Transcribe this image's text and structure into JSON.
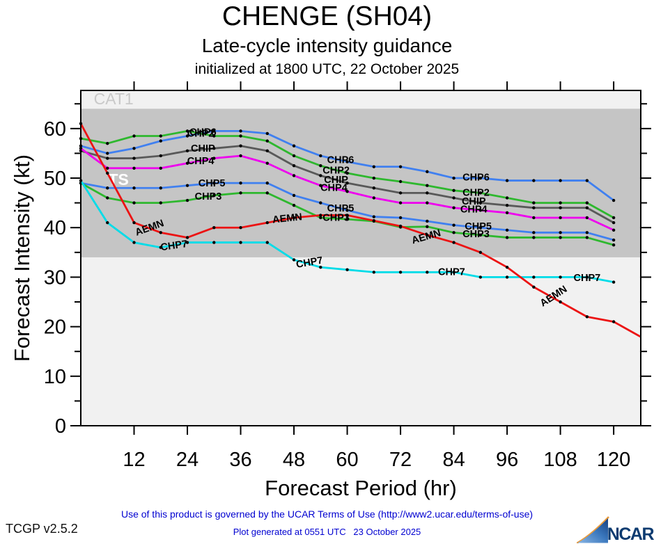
{
  "header": {
    "title": "CHENGE (SH04)",
    "subtitle": "Late-cycle intensity guidance",
    "init_line": "initialized at 1800 UTC, 22 October 2025"
  },
  "footer": {
    "terms": "Use of this product is governed by the UCAR Terms of Use (http://www2.ucar.edu/terms-of-use)",
    "generated": "Plot generated at 0551 UTC   23 October 2025",
    "version": "TCGP v2.5.2",
    "logo_text": "NCAR",
    "link_color": "#0000d0"
  },
  "chart_data": {
    "type": "line",
    "title": "CHENGE (SH04)",
    "xlabel": "Forecast Period (hr)",
    "ylabel": "Forecast Intensity (kt)",
    "xlim": [
      0,
      126.1
    ],
    "ylim": [
      0,
      67.7
    ],
    "x_ticks": [
      12,
      24,
      36,
      48,
      60,
      72,
      84,
      96,
      108,
      120
    ],
    "y_ticks_major": [
      0,
      10,
      20,
      30,
      40,
      50,
      60
    ],
    "y_ticks_minor": [
      5,
      15,
      25,
      35,
      45,
      55,
      65
    ],
    "grid": false,
    "marker_interval_hr": 6,
    "background": "#f1f1f1",
    "frame_color": "#000000",
    "bands": [
      {
        "name": "TS",
        "from": 34,
        "to": 64,
        "color": "#c5c5c5"
      }
    ],
    "zone_labels": [
      {
        "text": "CAT1",
        "t": 7.4,
        "v": 66.0,
        "color": "#c9c9c9",
        "bold": false,
        "size": 23
      },
      {
        "text": "TS",
        "t": 8.5,
        "v": 49.7,
        "color": "#ffffff",
        "bold": true,
        "size": 23
      }
    ],
    "series": [
      {
        "id": "CHP6",
        "color": "#4080f0",
        "x": [
          0,
          6,
          12,
          18,
          24,
          30,
          36,
          42,
          48,
          54,
          60,
          66,
          72,
          78,
          84,
          90,
          96,
          102,
          108,
          114,
          120
        ],
        "values": [
          56.5,
          55,
          56,
          57.5,
          58.5,
          59.5,
          59.5,
          59,
          56.5,
          54.5,
          53.3,
          52.3,
          52.3,
          51.3,
          50,
          50,
          49.5,
          49.5,
          49.5,
          49.5,
          45.5
        ],
        "labels": [
          {
            "t": 27.5,
            "v": 59.2,
            "rot": 0
          },
          {
            "t": 58.5,
            "v": 53.6,
            "rot": 0
          },
          {
            "t": 89,
            "v": 50.1,
            "rot": 0
          }
        ]
      },
      {
        "id": "CHP2",
        "color": "#2eb82e",
        "x": [
          0,
          6,
          12,
          18,
          24,
          30,
          36,
          42,
          48,
          54,
          60,
          66,
          72,
          78,
          84,
          90,
          96,
          102,
          108,
          114,
          120
        ],
        "values": [
          58,
          57,
          58.5,
          58.5,
          59.5,
          58.5,
          58.5,
          57.5,
          54.5,
          52.5,
          51,
          50,
          49.3,
          48.5,
          47.5,
          47,
          46,
          45,
          45,
          45,
          42
        ],
        "labels": [
          {
            "t": 27,
            "v": 58.9,
            "rot": 0
          },
          {
            "t": 57.5,
            "v": 51.5,
            "rot": 0
          },
          {
            "t": 89,
            "v": 47,
            "rot": 0
          }
        ]
      },
      {
        "id": "CHIP",
        "color": "#595959",
        "x": [
          0,
          6,
          12,
          18,
          24,
          30,
          36,
          42,
          48,
          54,
          60,
          66,
          72,
          78,
          84,
          90,
          96,
          102,
          108,
          114,
          120
        ],
        "values": [
          55.5,
          54,
          54,
          54.5,
          55.5,
          56,
          56.5,
          55.5,
          52.5,
          50.5,
          49,
          48,
          47,
          47,
          46,
          45,
          44.5,
          44,
          44,
          44,
          41
        ],
        "labels": [
          {
            "t": 27.5,
            "v": 55.9,
            "rot": 0
          },
          {
            "t": 57.5,
            "v": 49.6,
            "rot": 0
          },
          {
            "t": 88.5,
            "v": 45.2,
            "rot": 0
          }
        ]
      },
      {
        "id": "CHP4",
        "color": "#ee00ee",
        "x": [
          0,
          6,
          12,
          18,
          24,
          30,
          36,
          42,
          48,
          54,
          60,
          66,
          72,
          78,
          84,
          90,
          96,
          102,
          108,
          114,
          120
        ],
        "values": [
          56,
          52,
          52,
          52,
          53,
          54,
          54.5,
          53,
          50.5,
          48.5,
          47.3,
          46,
          45,
          45,
          44,
          43.5,
          43,
          42,
          42,
          42,
          39.5
        ],
        "labels": [
          {
            "t": 27,
            "v": 53.4,
            "rot": 0
          },
          {
            "t": 57,
            "v": 48,
            "rot": 0
          },
          {
            "t": 88.5,
            "v": 43.6,
            "rot": 0
          }
        ]
      },
      {
        "id": "CHP5",
        "color": "#4080f0",
        "x": [
          0,
          6,
          12,
          18,
          24,
          30,
          36,
          42,
          48,
          54,
          60,
          66,
          72,
          78,
          84,
          90,
          96,
          102,
          108,
          114,
          120
        ],
        "values": [
          49,
          48,
          48,
          48,
          48.5,
          49,
          49,
          49,
          46.5,
          45,
          43.5,
          42.2,
          42,
          41.3,
          40.5,
          40,
          39.5,
          39,
          39,
          39,
          37.5
        ],
        "labels": [
          {
            "t": 29.5,
            "v": 48.9,
            "rot": 0
          },
          {
            "t": 58.5,
            "v": 43.8,
            "rot": 0
          },
          {
            "t": 89.5,
            "v": 40.2,
            "rot": 0
          }
        ]
      },
      {
        "id": "CHP3",
        "color": "#2eb82e",
        "x": [
          0,
          6,
          12,
          18,
          24,
          30,
          36,
          42,
          48,
          54,
          60,
          66,
          72,
          78,
          84,
          90,
          96,
          102,
          108,
          114,
          120
        ],
        "values": [
          49,
          46,
          45,
          45,
          45.5,
          46.5,
          47,
          47,
          44.5,
          42,
          41.7,
          41.3,
          40.1,
          40.2,
          39,
          38.5,
          38,
          38,
          38,
          38,
          36.5
        ],
        "labels": [
          {
            "t": 28.7,
            "v": 46.2,
            "rot": 0
          },
          {
            "t": 57.5,
            "v": 41.9,
            "rot": 0
          },
          {
            "t": 89,
            "v": 38.6,
            "rot": 0
          }
        ]
      },
      {
        "id": "CHP7",
        "color": "#00dce8",
        "x": [
          0,
          6,
          12,
          18,
          24,
          30,
          36,
          42,
          48,
          54,
          60,
          66,
          72,
          78,
          84,
          90,
          96,
          102,
          108,
          114,
          120
        ],
        "values": [
          49.5,
          41,
          37,
          36,
          37,
          37,
          37,
          37,
          33.5,
          32,
          31.5,
          31,
          31,
          31,
          31,
          30,
          30,
          30,
          30,
          30,
          29
        ],
        "labels": [
          {
            "t": 21,
            "v": 36.3,
            "rot": -8
          },
          {
            "t": 51.5,
            "v": 32.9,
            "rot": -10
          },
          {
            "t": 83.5,
            "v": 31,
            "rot": 0
          },
          {
            "t": 114,
            "v": 29.8,
            "rot": 0
          }
        ]
      },
      {
        "id": "AEMN",
        "color": "#ec1313",
        "x": [
          0,
          6,
          12,
          18,
          24,
          30,
          36,
          42,
          48,
          54,
          60,
          66,
          72,
          78,
          84,
          90,
          96,
          102,
          108,
          114,
          120,
          126
        ],
        "values": [
          61,
          51,
          41,
          39,
          38,
          40,
          40,
          41,
          42,
          42.5,
          42.5,
          41.4,
          40.3,
          38.5,
          37,
          35,
          32,
          28,
          25,
          22,
          21,
          18
        ],
        "labels": [
          {
            "t": 15.5,
            "v": 39.9,
            "rot": -20
          },
          {
            "t": 46.5,
            "v": 41.8,
            "rot": -6
          },
          {
            "t": 77.8,
            "v": 38.1,
            "rot": -16
          },
          {
            "t": 106.5,
            "v": 26.1,
            "rot": -33
          }
        ]
      }
    ]
  }
}
